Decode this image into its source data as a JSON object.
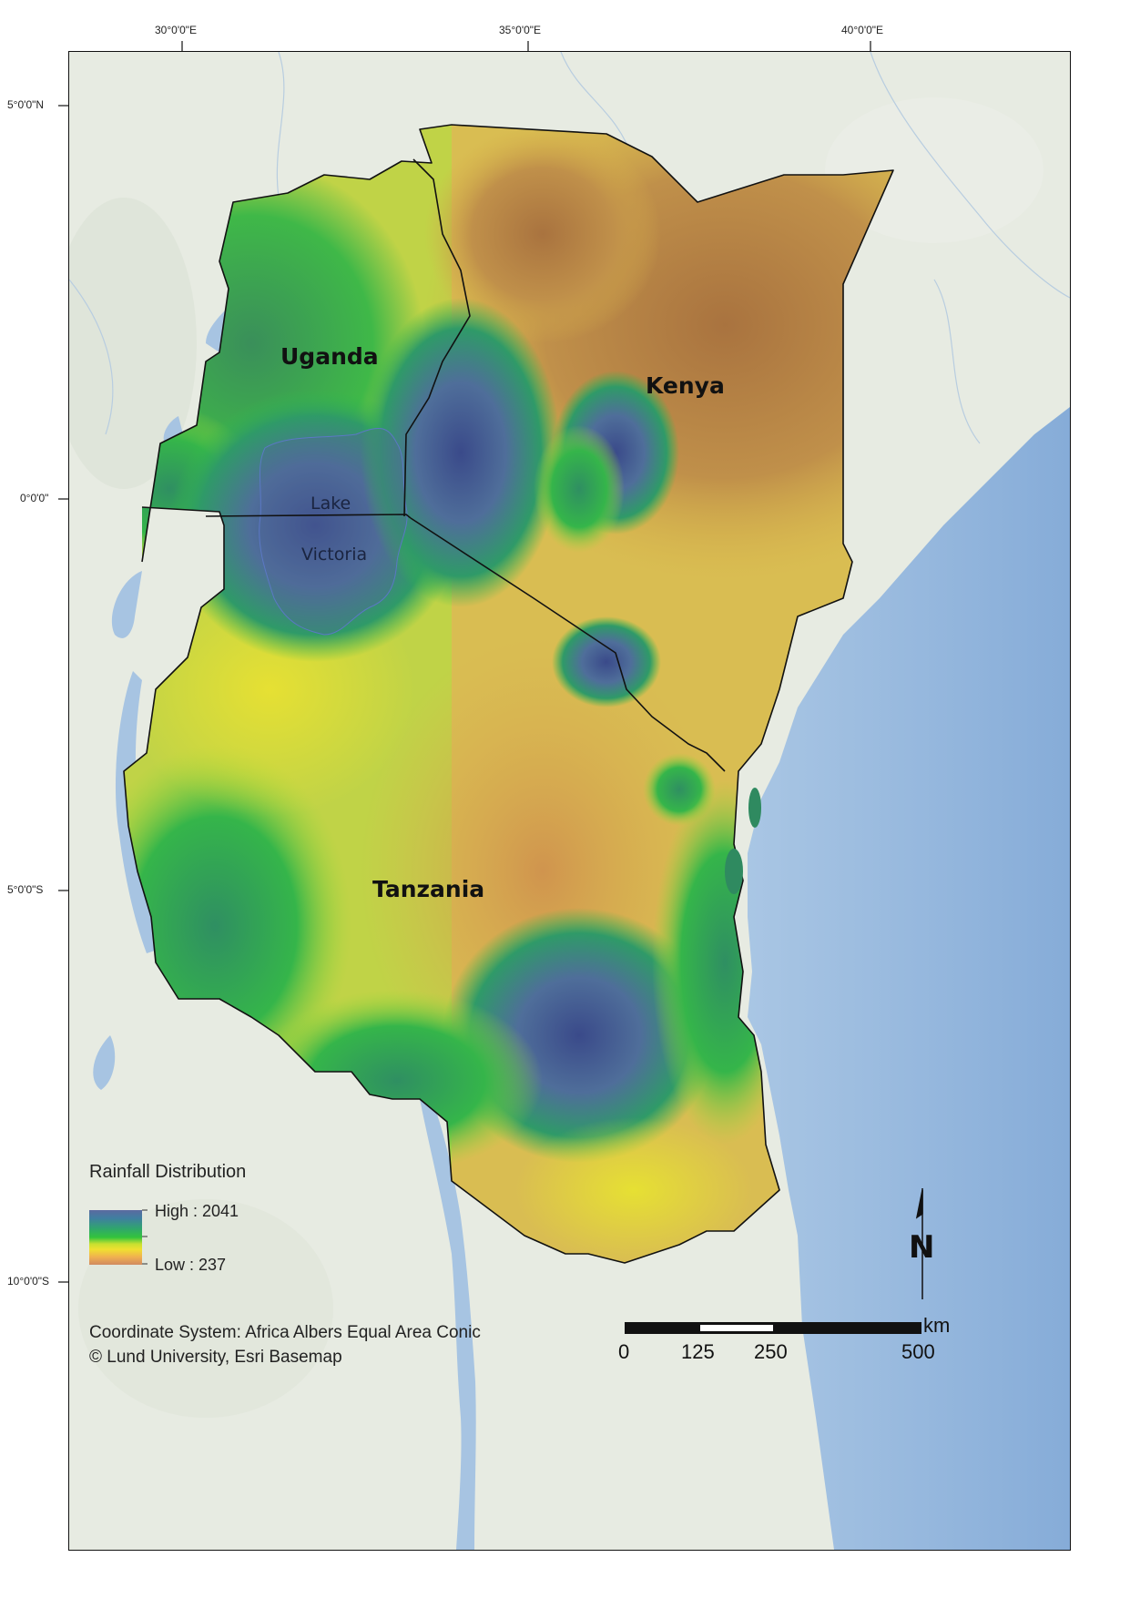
{
  "graticule": {
    "top": [
      "30°0'0\"E",
      "35°0'0\"E",
      "40°0'0\"E"
    ],
    "left": [
      "5°0'0\"N",
      "0°0'0\"",
      "5°0'0\"S",
      "10°0'0\"S"
    ]
  },
  "countries": [
    "Uganda",
    "Kenya",
    "Tanzania"
  ],
  "lake": {
    "line1": "Lake",
    "line2": "Victoria"
  },
  "legend": {
    "title": "Rainfall Distribution",
    "high": "High : 2041",
    "low": "Low : 237",
    "colors": [
      "#5a6aa0",
      "#3f7fa0",
      "#2fa86a",
      "#33c43d",
      "#c8e030",
      "#f0e030",
      "#f0b050",
      "#d08a60"
    ]
  },
  "credits": {
    "coordinate_system": "Coordinate System: Africa Albers Equal Area Conic",
    "copyright": "© Lund University, Esri Basemap"
  },
  "scale_bar": {
    "unit": "km",
    "labels": [
      "0",
      "125",
      "250",
      "500"
    ]
  },
  "north_arrow": {
    "label": "N"
  },
  "colors": {
    "ocean": "#8fb4dc",
    "land_base": "#e8ece4",
    "border": "#111111",
    "high_rain": "#4a5a9a",
    "mid_rain": "#3cb84a",
    "low_rain": "#b5803a"
  }
}
